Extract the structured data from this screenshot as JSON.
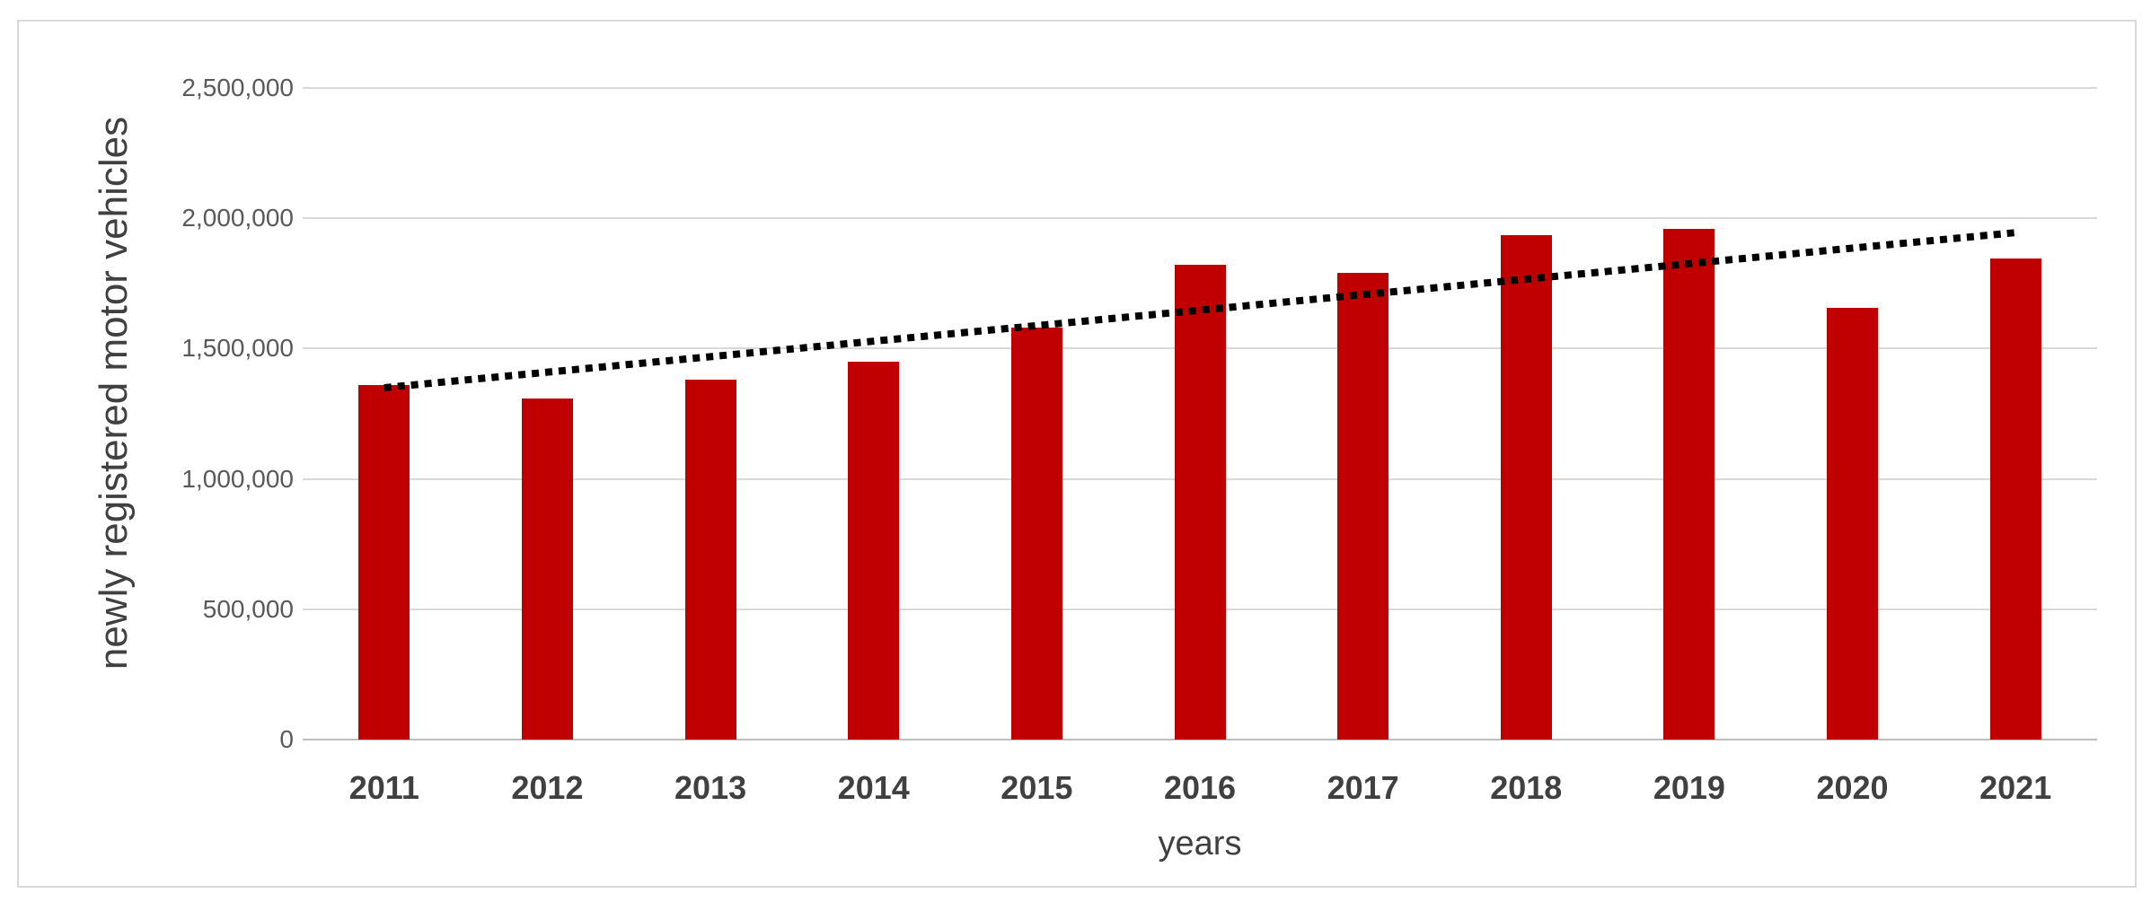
{
  "chart_data": {
    "type": "bar",
    "title": "",
    "xlabel": "years",
    "ylabel": "newly registered motor vehicles",
    "categories": [
      "2011",
      "2012",
      "2013",
      "2014",
      "2015",
      "2016",
      "2017",
      "2018",
      "2019",
      "2020",
      "2021"
    ],
    "values": [
      1360000,
      1310000,
      1380000,
      1450000,
      1580000,
      1820000,
      1790000,
      1935000,
      1960000,
      1655000,
      1845000
    ],
    "y_axis": {
      "min": 0,
      "max": 2500000,
      "step": 500000,
      "tick_values": [
        0,
        500000,
        1000000,
        1500000,
        2000000,
        2500000
      ],
      "tick_labels": [
        "0",
        "500,000",
        "1,000,000",
        "1,500,000",
        "2,000,000",
        "2,500,000"
      ]
    },
    "trendline": {
      "style": "dotted",
      "start_value": 1350000,
      "end_value": 1945000,
      "color": "#000000"
    },
    "grid": true,
    "legend": false,
    "colors": {
      "bar": "#c00000",
      "gridline": "#d9d9d9",
      "axis_line": "#bfbfbf",
      "frame_border": "#d9d9d9",
      "tick_text": "#595959",
      "category_text": "#404040",
      "axis_title_text": "#404040",
      "background": "#ffffff"
    }
  }
}
